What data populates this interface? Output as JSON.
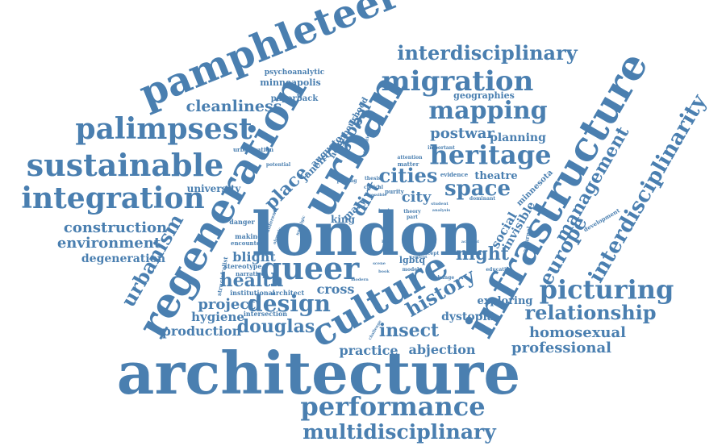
{
  "cloud": {
    "color": "#4a7fb0",
    "words": [
      "architecture",
      "london",
      "urban",
      "regeneration",
      "infrastructure",
      "culture",
      "pamphleteer",
      "queer",
      "sustainable",
      "integration",
      "palimpsest",
      "migration",
      "heritage",
      "mapping",
      "performance",
      "multidisciplinary",
      "picturing",
      "interdisciplinary",
      "interdisciplinarity",
      "space",
      "cities",
      "history",
      "design",
      "urbanism",
      "health",
      "relationship",
      "europe",
      "management",
      "cleanliness",
      "construction",
      "environment",
      "degeneration",
      "douglas",
      "insect",
      "professional",
      "homosexual",
      "practice",
      "abjection",
      "night",
      "project",
      "production",
      "hygiene",
      "blight",
      "place",
      "global",
      "dirt",
      "city",
      "cross",
      "postwar",
      "planning",
      "theatre",
      "social",
      "invisible",
      "dystopia",
      "exploring",
      "minneapolis",
      "paperback",
      "geographies",
      "university",
      "janeiro",
      "augusto",
      "neighbourhood",
      "lgbtq",
      "king",
      "mary",
      "minnesota",
      "stereotype",
      "narrative",
      "institutional",
      "architect",
      "intersection",
      "danger",
      "making",
      "encounter",
      "structuralist",
      "different",
      "psychoanalytic",
      "urbanisation",
      "critical",
      "purity",
      "theory",
      "part",
      "evidence",
      "dominant",
      "important",
      "attention",
      "matter",
      "development",
      "nocturnal",
      "education",
      "change",
      "model",
      "concept",
      "student",
      "analysis",
      "potential",
      "placing",
      "thesis",
      "accessible",
      "account",
      "modern",
      "scene",
      "book",
      "boal",
      "page",
      "context",
      "local",
      "olympic",
      "challenge",
      "identities",
      "nostalgic"
    ]
  }
}
